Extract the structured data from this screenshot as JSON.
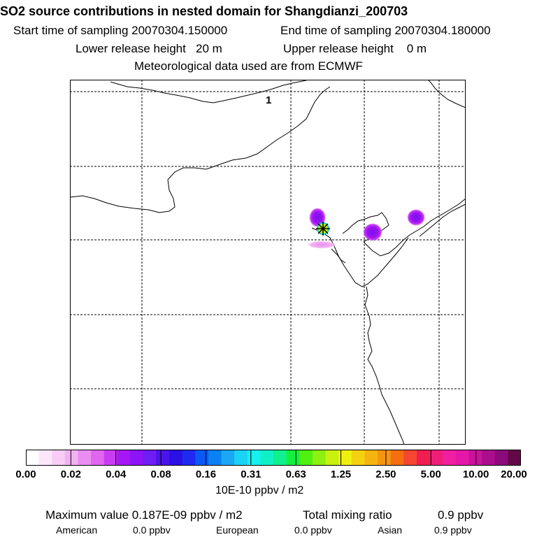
{
  "header": {
    "title": "SO2 source contributions in nested domain for Shangdianzi_200703",
    "start_label": "Start time of sampling 20070304.150000",
    "end_label": "End time of sampling 20070304.180000",
    "lower_label": "Lower release height   20 m",
    "upper_label": "Upper release height    0 m",
    "met_label": "Meteorological data used are from ECMWF"
  },
  "map": {
    "grid_label": "1",
    "station_marker": "asterisk-station",
    "colors": {
      "coast": "#000000",
      "grid": "#000000"
    }
  },
  "colorbar": {
    "ticks": [
      "0.00",
      "0.02",
      "0.04",
      "0.08",
      "0.16",
      "0.31",
      "0.63",
      "1.25",
      "2.50",
      "5.00",
      "10.00",
      "20.00"
    ],
    "unit": "10E-10 ppbv / m2",
    "colors": [
      "#ffffff",
      "#fde6fb",
      "#f8ccf6",
      "#f2b2f2",
      "#e98ef0",
      "#e066f0",
      "#c93cf5",
      "#a617f7",
      "#8c14f7",
      "#6f1cf5",
      "#4a14ea",
      "#2a10e5",
      "#1e2af0",
      "#0a58f5",
      "#0a80f5",
      "#1aa8f5",
      "#1ad2f5",
      "#16f0f0",
      "#10f0c8",
      "#10f08c",
      "#14f040",
      "#50f010",
      "#8cf010",
      "#c8f010",
      "#f0f010",
      "#f5d210",
      "#f5b410",
      "#f59610",
      "#f56e10",
      "#f54632",
      "#f01e50",
      "#f01e78",
      "#f01ea0",
      "#e616a8",
      "#c8129a",
      "#aa0e8c",
      "#8c0a7c",
      "#640848"
    ]
  },
  "summary": {
    "max_label": "Maximum value  0.187E-09 ppbv / m2",
    "total_label": "Total mixing ratio",
    "total_value": "0.9 ppbv",
    "american_label": "American",
    "american_value": "0.0 ppbv",
    "european_label": "European",
    "european_value": "0.0 ppbv",
    "asian_label": "Asian",
    "asian_value": "0.9 ppbv"
  }
}
